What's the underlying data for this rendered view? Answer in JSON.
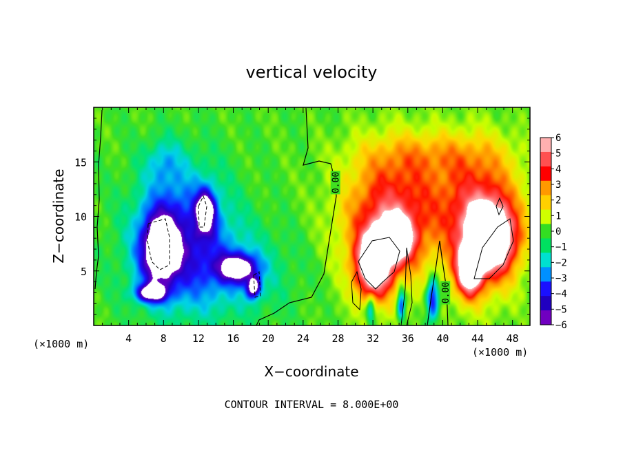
{
  "chart_data": {
    "type": "heatmap",
    "title": "vertical velocity",
    "xlabel": "X−coordinate",
    "ylabel": "Z−coordinate",
    "x_unit_left": "(×1000 m)",
    "x_unit_right": "(×1000 m)",
    "footer": "CONTOUR INTERVAL = 8.000E+00",
    "xlim": [
      0,
      50
    ],
    "ylim": [
      0,
      20
    ],
    "x_ticks": [
      "4",
      "8",
      "12",
      "16",
      "20",
      "24",
      "28",
      "32",
      "36",
      "40",
      "44",
      "48"
    ],
    "x_tick_values": [
      4,
      8,
      12,
      16,
      20,
      24,
      28,
      32,
      36,
      40,
      44,
      48
    ],
    "y_ticks": [
      "5",
      "10",
      "15"
    ],
    "y_tick_values": [
      5,
      10,
      15
    ],
    "contour_labels": [
      {
        "text": "0.00",
        "x": 27.7,
        "z": 13.1
      },
      {
        "text": "0.00",
        "x": 40.3,
        "z": 3.0
      }
    ],
    "colorbar": {
      "labels": [
        "6",
        "5",
        "4",
        "3",
        "2",
        "1",
        "0",
        "−1",
        "−2",
        "−3",
        "−4",
        "−5",
        "−6"
      ],
      "values": [
        6,
        5,
        4,
        3,
        2,
        1,
        0,
        -1,
        -2,
        -3,
        -4,
        -5,
        -6
      ],
      "colors": [
        "#ffb0b0",
        "#ff5050",
        "#ff0000",
        "#ff9900",
        "#ffd000",
        "#d0ff00",
        "#33dd22",
        "#00e060",
        "#00e0d0",
        "#0090ff",
        "#1a10ff",
        "#2000c0",
        "#7000c0"
      ]
    },
    "colors": {
      "background_field": "#40e020",
      "updraft_core": "#ffffff",
      "downdraft_core": "#ffffff"
    },
    "field_blobs": [
      {
        "x": 10,
        "z": 9,
        "rx": 6.5,
        "rz": 7.2,
        "v": -3.6,
        "note": "broad downdraft west"
      },
      {
        "x": 13.5,
        "z": 5,
        "rx": 10,
        "rz": 5.5,
        "v": -2.2
      },
      {
        "x": 8,
        "z": 15,
        "rx": 2.5,
        "rz": 2.5,
        "v": -1.6
      },
      {
        "x": 7.5,
        "z": 7,
        "rx": 2.6,
        "rz": 4.2,
        "v": -6.5
      },
      {
        "x": 12.8,
        "z": 10.5,
        "rx": 1.4,
        "rz": 2.4,
        "v": -6.3
      },
      {
        "x": 16.5,
        "z": 5.3,
        "rx": 2.8,
        "rz": 1.6,
        "v": -6.3
      },
      {
        "x": 18.3,
        "z": 3.5,
        "rx": 1.0,
        "rz": 1.2,
        "v": -6.2
      },
      {
        "x": 6.5,
        "z": 3,
        "rx": 2.2,
        "rz": 1.0,
        "v": -6
      },
      {
        "x": 33.5,
        "z": 9,
        "rx": 6.5,
        "rz": 7.8,
        "v": 4.0,
        "note": "updraft cell"
      },
      {
        "x": 44.5,
        "z": 9,
        "rx": 5.5,
        "rz": 7.8,
        "v": 4.0,
        "note": "updraft cell"
      },
      {
        "x": 39,
        "z": 12.5,
        "rx": 11,
        "rz": 6.5,
        "v": 1.8
      },
      {
        "x": 39,
        "z": 15.8,
        "rx": 10,
        "rz": 2.5,
        "v": 1.2
      },
      {
        "x": 32,
        "z": 5.5,
        "rx": 2.5,
        "rz": 3.5,
        "v": 7
      },
      {
        "x": 34.5,
        "z": 8,
        "rx": 2.5,
        "rz": 2.5,
        "v": 6.5
      },
      {
        "x": 45.5,
        "z": 8,
        "rx": 3.5,
        "rz": 3.8,
        "v": 7
      },
      {
        "x": 43,
        "z": 5,
        "rx": 1.8,
        "rz": 2.8,
        "v": 6.5
      },
      {
        "x": 38.8,
        "z": 2.5,
        "rx": 0.9,
        "rz": 2.5,
        "v": -5
      },
      {
        "x": 35.2,
        "z": 2.0,
        "rx": 0.6,
        "rz": 2.0,
        "v": -4.2
      },
      {
        "x": 31.7,
        "z": 1.5,
        "rx": 0.6,
        "rz": 1.5,
        "v": -3.2
      }
    ]
  }
}
